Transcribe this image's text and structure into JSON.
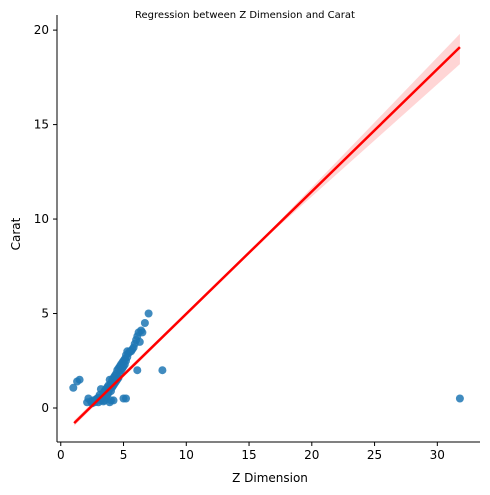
{
  "chart_data": {
    "type": "scatter",
    "title": "Regression between Z Dimension and Carat",
    "xlabel": "Z Dimension",
    "ylabel": "Carat",
    "xlim": [
      -0.3,
      33.4
    ],
    "ylim": [
      -1.8,
      20.8
    ],
    "xticks": [
      0,
      5,
      10,
      15,
      20,
      25,
      30
    ],
    "yticks": [
      0,
      5,
      10,
      15,
      20
    ],
    "grid": false,
    "point_color": "#1f77b4",
    "regression_color": "#ff0000",
    "ci_color": "#ffb3b3",
    "points": [
      [
        1.0,
        1.07
      ],
      [
        1.3,
        1.4
      ],
      [
        1.5,
        1.5
      ],
      [
        2.1,
        0.3
      ],
      [
        2.2,
        0.5
      ],
      [
        2.4,
        0.35
      ],
      [
        2.5,
        0.25
      ],
      [
        2.6,
        0.4
      ],
      [
        2.7,
        0.3
      ],
      [
        2.8,
        0.45
      ],
      [
        2.9,
        0.5
      ],
      [
        3.0,
        0.55
      ],
      [
        3.0,
        0.3
      ],
      [
        3.1,
        0.7
      ],
      [
        3.2,
        0.4
      ],
      [
        3.2,
        1.0
      ],
      [
        3.3,
        0.6
      ],
      [
        3.4,
        0.8
      ],
      [
        3.4,
        0.35
      ],
      [
        3.5,
        0.9
      ],
      [
        3.5,
        0.4
      ],
      [
        3.6,
        1.0
      ],
      [
        3.6,
        0.55
      ],
      [
        3.7,
        1.1
      ],
      [
        3.7,
        0.7
      ],
      [
        3.8,
        1.2
      ],
      [
        3.8,
        0.8
      ],
      [
        3.9,
        1.5
      ],
      [
        3.9,
        1.0
      ],
      [
        4.0,
        1.3
      ],
      [
        4.0,
        0.9
      ],
      [
        4.1,
        1.5
      ],
      [
        4.1,
        1.1
      ],
      [
        4.2,
        1.6
      ],
      [
        4.2,
        1.2
      ],
      [
        4.3,
        1.7
      ],
      [
        4.3,
        1.3
      ],
      [
        4.4,
        1.8
      ],
      [
        4.4,
        1.4
      ],
      [
        4.5,
        2.0
      ],
      [
        4.5,
        1.5
      ],
      [
        4.6,
        2.1
      ],
      [
        4.6,
        1.6
      ],
      [
        4.7,
        2.2
      ],
      [
        4.7,
        1.8
      ],
      [
        4.8,
        2.3
      ],
      [
        4.8,
        2.0
      ],
      [
        4.9,
        2.4
      ],
      [
        4.9,
        2.1
      ],
      [
        5.0,
        2.5
      ],
      [
        5.0,
        2.2
      ],
      [
        5.1,
        2.6
      ],
      [
        5.1,
        2.3
      ],
      [
        5.2,
        2.8
      ],
      [
        5.2,
        2.5
      ],
      [
        5.3,
        3.0
      ],
      [
        5.3,
        2.7
      ],
      [
        5.4,
        2.9
      ],
      [
        5.5,
        3.0
      ],
      [
        5.6,
        3.0
      ],
      [
        5.7,
        3.1
      ],
      [
        5.8,
        3.2
      ],
      [
        5.9,
        3.4
      ],
      [
        6.0,
        3.6
      ],
      [
        6.1,
        3.8
      ],
      [
        6.2,
        4.0
      ],
      [
        6.3,
        3.5
      ],
      [
        6.4,
        4.1
      ],
      [
        6.5,
        4.0
      ],
      [
        6.7,
        4.5
      ],
      [
        7.0,
        5.0
      ],
      [
        3.9,
        0.3
      ],
      [
        4.2,
        0.4
      ],
      [
        4.0,
        0.4
      ],
      [
        5.0,
        0.5
      ],
      [
        5.2,
        0.5
      ],
      [
        6.1,
        2.0
      ],
      [
        8.1,
        2.0
      ],
      [
        31.8,
        0.5
      ]
    ],
    "regression": {
      "x_start": 1.07,
      "y_start": -0.8,
      "x_end": 31.8,
      "y_end": 19.1,
      "ci_end_upper": 19.8,
      "ci_end_lower": 18.2
    }
  }
}
